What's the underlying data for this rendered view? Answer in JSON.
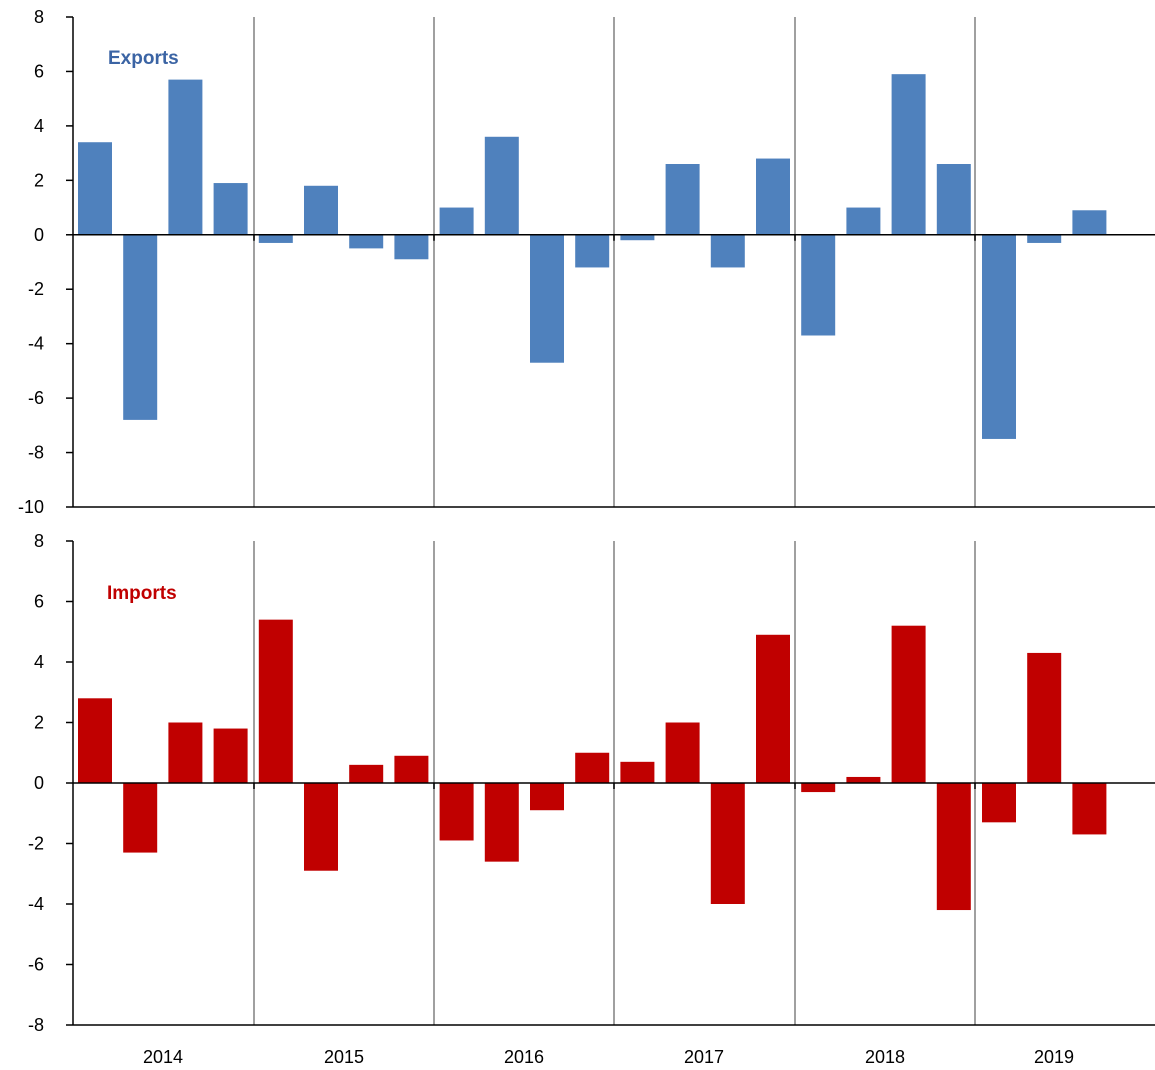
{
  "chart_data": [
    {
      "type": "bar",
      "label": "Exports",
      "color": "#4F81BD",
      "label_color": "#3B64A4",
      "categories": [
        "2014 Q1",
        "2014 Q2",
        "2014 Q3",
        "2014 Q4",
        "2015 Q1",
        "2015 Q2",
        "2015 Q3",
        "2015 Q4",
        "2016 Q1",
        "2016 Q2",
        "2016 Q3",
        "2016 Q4",
        "2017 Q1",
        "2017 Q2",
        "2017 Q3",
        "2017 Q4",
        "2018 Q1",
        "2018 Q2",
        "2018 Q3",
        "2018 Q4",
        "2019 Q1",
        "2019 Q2",
        "2019 Q3"
      ],
      "values": [
        3.4,
        -6.8,
        5.7,
        1.9,
        -0.3,
        1.8,
        -0.5,
        -0.9,
        1.0,
        3.6,
        -4.7,
        -1.2,
        -0.2,
        2.6,
        -1.2,
        2.8,
        -3.7,
        1.0,
        5.9,
        2.6,
        -7.5,
        -0.3,
        0.9
      ],
      "ylim": [
        -10,
        8
      ],
      "yticks": [
        "8",
        "6",
        "4",
        "2",
        "0",
        "-2",
        "-4",
        "-6",
        "-8",
        "-10"
      ]
    },
    {
      "type": "bar",
      "label": "Imports",
      "color": "#C00000",
      "label_color": "#C00000",
      "categories": [
        "2014 Q1",
        "2014 Q2",
        "2014 Q3",
        "2014 Q4",
        "2015 Q1",
        "2015 Q2",
        "2015 Q3",
        "2015 Q4",
        "2016 Q1",
        "2016 Q2",
        "2016 Q3",
        "2016 Q4",
        "2017 Q1",
        "2017 Q2",
        "2017 Q3",
        "2017 Q4",
        "2018 Q1",
        "2018 Q2",
        "2018 Q3",
        "2018 Q4",
        "2019 Q1",
        "2019 Q2",
        "2019 Q3"
      ],
      "values": [
        2.8,
        -2.3,
        2.0,
        1.8,
        5.4,
        -2.9,
        0.6,
        0.9,
        -1.9,
        -2.6,
        -0.9,
        1.0,
        0.7,
        2.0,
        -4.0,
        4.9,
        -0.3,
        0.2,
        5.2,
        -4.2,
        -1.3,
        4.3,
        -1.7
      ],
      "ylim": [
        -8,
        8
      ],
      "yticks": [
        "8",
        "6",
        "4",
        "2",
        "0",
        "-2",
        "-4",
        "-6",
        "-8"
      ]
    }
  ],
  "years": [
    "2014",
    "2015",
    "2016",
    "2017",
    "2018",
    "2019"
  ],
  "grid_color": "#808080",
  "axis_color": "#000000"
}
